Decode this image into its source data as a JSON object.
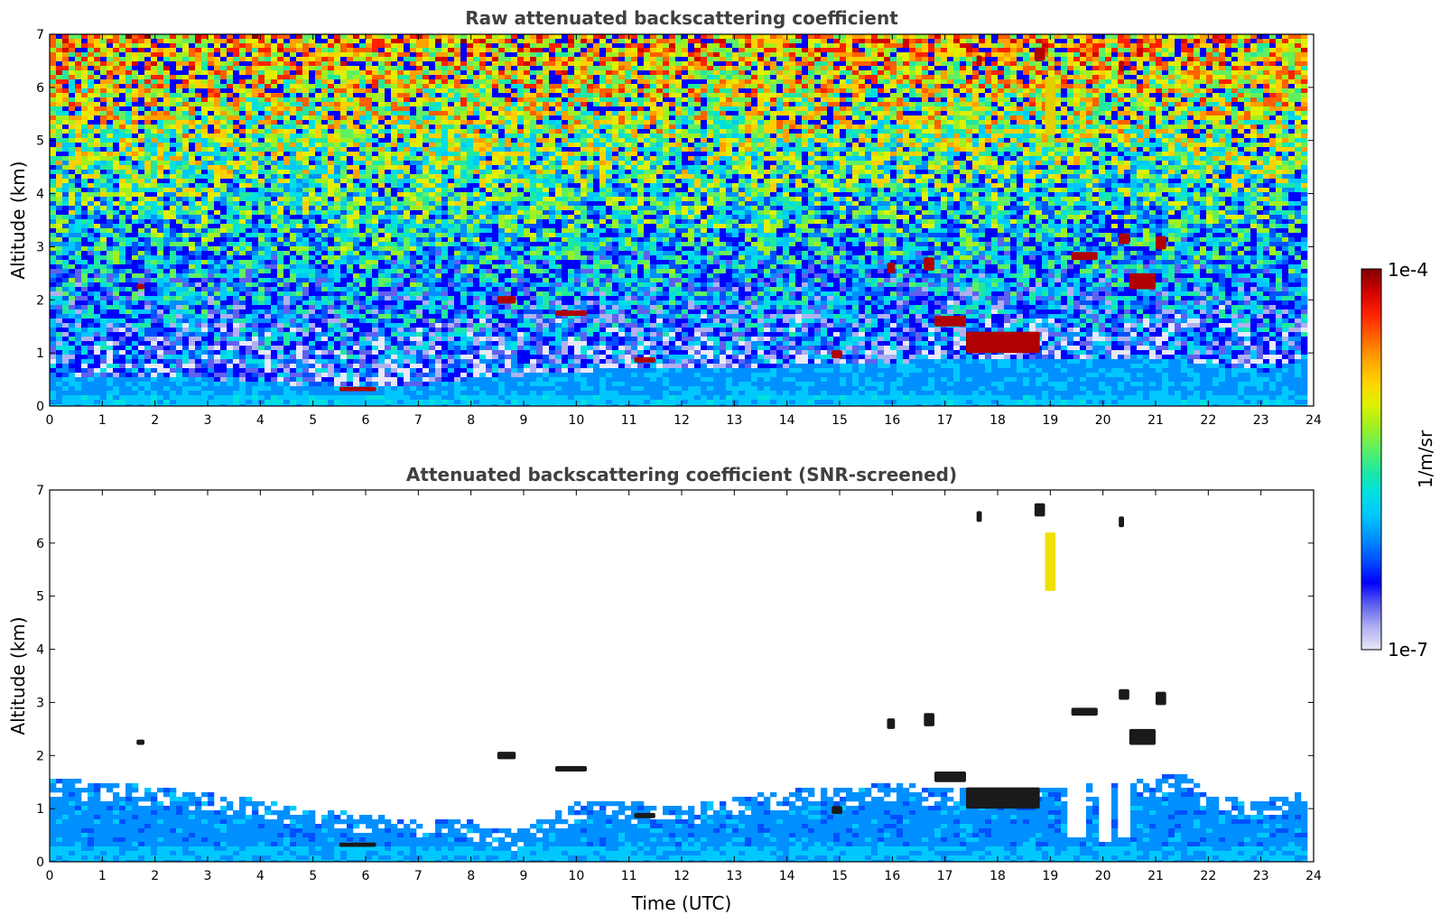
{
  "chart_data": [
    {
      "type": "heatmap",
      "title": "Raw attenuated backscattering coefficient",
      "xlabel": "",
      "ylabel": "Altitude (km)",
      "xlim": [
        0,
        24
      ],
      "ylim": [
        0,
        7
      ],
      "xticks": [
        "0",
        "1",
        "2",
        "3",
        "4",
        "5",
        "6",
        "7",
        "8",
        "9",
        "10",
        "11",
        "12",
        "13",
        "14",
        "15",
        "16",
        "17",
        "18",
        "19",
        "20",
        "21",
        "22",
        "23",
        "24"
      ],
      "yticks": [
        "0",
        "1",
        "2",
        "3",
        "4",
        "5",
        "6",
        "7"
      ],
      "data_end_hour": 23.8,
      "noise": "raw",
      "boundary_layer_top_km": [
        {
          "x": 0,
          "y": 0.6
        },
        {
          "x": 3,
          "y": 0.55
        },
        {
          "x": 5.5,
          "y": 0.4
        },
        {
          "x": 7,
          "y": 0.45
        },
        {
          "x": 8.5,
          "y": 0.6
        },
        {
          "x": 10,
          "y": 0.7
        },
        {
          "x": 14,
          "y": 0.8
        },
        {
          "x": 18,
          "y": 0.95
        },
        {
          "x": 21,
          "y": 0.95
        },
        {
          "x": 23,
          "y": 0.7
        },
        {
          "x": 23.8,
          "y": 0.9
        }
      ],
      "cloud_features": [
        {
          "x0": 1.65,
          "x1": 1.8,
          "y0": 2.2,
          "y1": 2.3
        },
        {
          "x0": 5.5,
          "x1": 6.2,
          "y0": 0.28,
          "y1": 0.36
        },
        {
          "x0": 8.5,
          "x1": 8.85,
          "y0": 1.93,
          "y1": 2.07
        },
        {
          "x0": 9.6,
          "x1": 10.2,
          "y0": 1.7,
          "y1": 1.8
        },
        {
          "x0": 11.1,
          "x1": 11.5,
          "y0": 0.82,
          "y1": 0.92
        },
        {
          "x0": 14.85,
          "x1": 15.05,
          "y0": 0.9,
          "y1": 1.05
        },
        {
          "x0": 15.9,
          "x1": 16.05,
          "y0": 2.5,
          "y1": 2.7
        },
        {
          "x0": 16.6,
          "x1": 16.8,
          "y0": 2.55,
          "y1": 2.8
        },
        {
          "x0": 16.8,
          "x1": 17.4,
          "y0": 1.5,
          "y1": 1.7
        },
        {
          "x0": 17.4,
          "x1": 18.8,
          "y0": 1.0,
          "y1": 1.4
        },
        {
          "x0": 19.4,
          "x1": 19.9,
          "y0": 2.75,
          "y1": 2.9
        },
        {
          "x0": 20.3,
          "x1": 20.5,
          "y0": 3.05,
          "y1": 3.25
        },
        {
          "x0": 20.5,
          "x1": 21.0,
          "y0": 2.2,
          "y1": 2.5
        },
        {
          "x0": 21.0,
          "x1": 21.2,
          "y0": 2.95,
          "y1": 3.2
        },
        {
          "x0": 17.6,
          "x1": 17.7,
          "y0": 6.4,
          "y1": 6.6
        },
        {
          "x0": 18.7,
          "x1": 18.9,
          "y0": 6.5,
          "y1": 6.75
        },
        {
          "x0": 18.9,
          "x1": 19.1,
          "y0": 5.1,
          "y1": 6.2
        },
        {
          "x0": 20.3,
          "x1": 20.4,
          "y0": 6.3,
          "y1": 6.5
        }
      ]
    },
    {
      "type": "heatmap",
      "title": "Attenuated backscattering coefficient (SNR-screened)",
      "xlabel": "Time (UTC)",
      "ylabel": "Altitude (km)",
      "xlim": [
        0,
        24
      ],
      "ylim": [
        0,
        7
      ],
      "xticks": [
        "0",
        "1",
        "2",
        "3",
        "4",
        "5",
        "6",
        "7",
        "8",
        "9",
        "10",
        "11",
        "12",
        "13",
        "14",
        "15",
        "16",
        "17",
        "18",
        "19",
        "20",
        "21",
        "22",
        "23",
        "24"
      ],
      "yticks": [
        "0",
        "1",
        "2",
        "3",
        "4",
        "5",
        "6",
        "7"
      ],
      "data_end_hour": 23.8,
      "noise": "screened",
      "screened_top_km": [
        {
          "x": 0,
          "y": 1.6
        },
        {
          "x": 2,
          "y": 1.45
        },
        {
          "x": 4,
          "y": 1.2
        },
        {
          "x": 6,
          "y": 0.9
        },
        {
          "x": 8,
          "y": 0.8
        },
        {
          "x": 8.8,
          "y": 0.6
        },
        {
          "x": 10,
          "y": 1.2
        },
        {
          "x": 12,
          "y": 1.1
        },
        {
          "x": 14,
          "y": 1.4
        },
        {
          "x": 16,
          "y": 1.5
        },
        {
          "x": 18,
          "y": 1.4
        },
        {
          "x": 20,
          "y": 1.5
        },
        {
          "x": 21.5,
          "y": 1.7
        },
        {
          "x": 22,
          "y": 1.3
        },
        {
          "x": 23,
          "y": 1.2
        },
        {
          "x": 23.8,
          "y": 1.4
        }
      ],
      "gaps": [
        {
          "x0": 19.3,
          "x1": 19.6,
          "y_bottom": 0.5
        },
        {
          "x0": 19.8,
          "x1": 20.1,
          "y_bottom": 0.4
        },
        {
          "x0": 20.2,
          "x1": 20.4,
          "y_bottom": 0.5
        }
      ]
    }
  ],
  "colorbar": {
    "label": "1/m/sr",
    "max_label": "1e-4",
    "min_label": "1e-7",
    "colormap": [
      "#e8e8f8",
      "#b0b0f0",
      "#6060f0",
      "#0000ff",
      "#0050ff",
      "#0090ff",
      "#00c8ff",
      "#00e0e0",
      "#20e8a0",
      "#60f060",
      "#a0f020",
      "#e0f000",
      "#ffd000",
      "#ffa000",
      "#ff6000",
      "#ff2000",
      "#d00000",
      "#800000"
    ]
  }
}
